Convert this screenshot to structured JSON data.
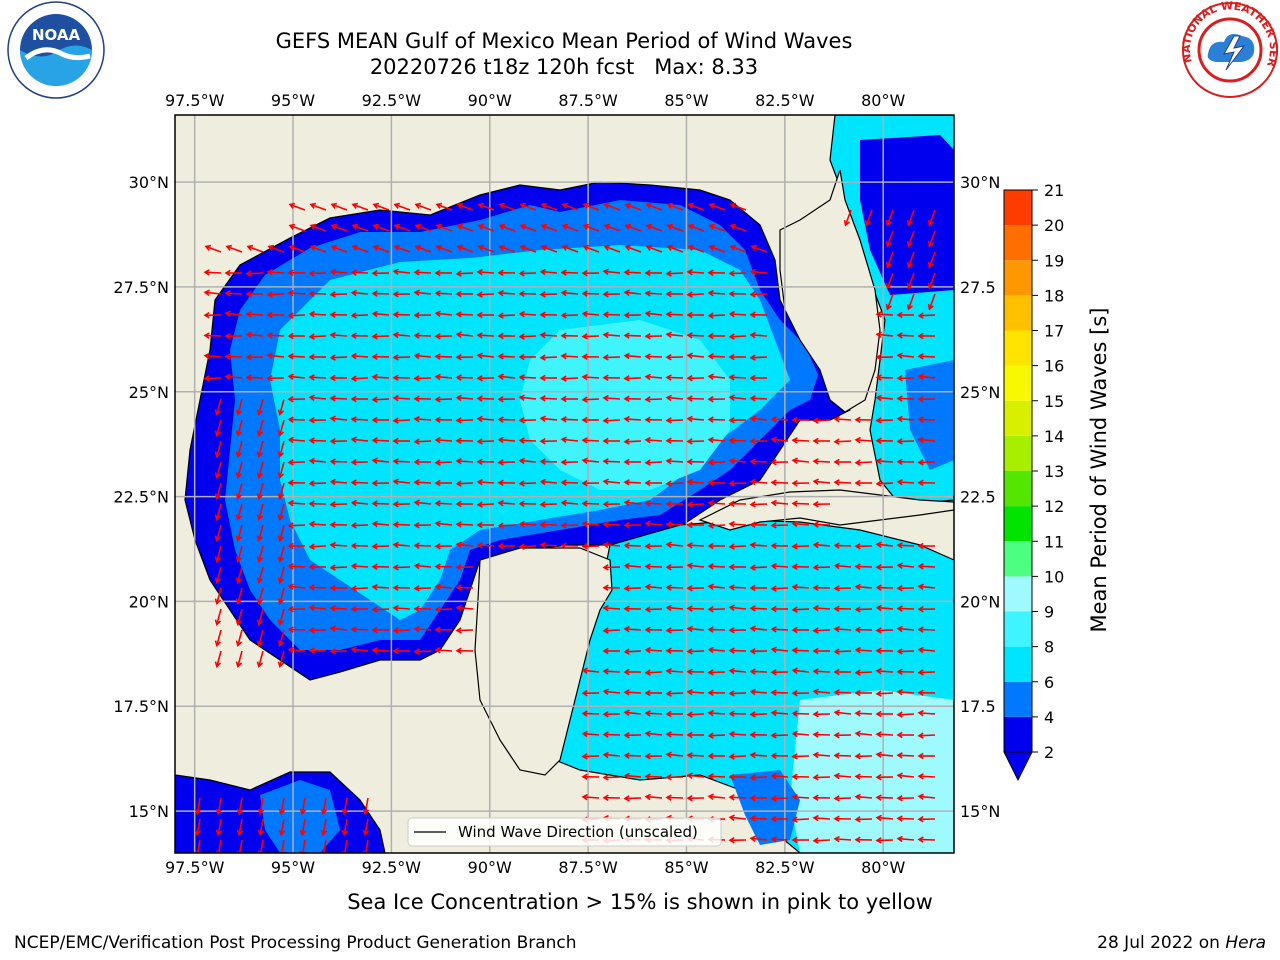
{
  "title": {
    "line1": "GEFS MEAN Gulf of Mexico Mean Period of Wind Waves",
    "line2": "20220726 t18z 120h fcst   Max: 8.33"
  },
  "map": {
    "lon_labels": [
      "97.5°W",
      "95°W",
      "92.5°W",
      "90°W",
      "87.5°W",
      "85°W",
      "82.5°W",
      "80°W"
    ],
    "lat_labels_left": [
      "30°N",
      "27.5°N",
      "25°N",
      "22.5°N",
      "20°N",
      "17.5°N",
      "15°N"
    ],
    "lat_labels_right": [
      "30°N",
      "27.5",
      "25°N",
      "22.5",
      "20°N",
      "17.5",
      "15°N"
    ],
    "lon_values": [
      -97.5,
      -95,
      -92.5,
      -90,
      -87.5,
      -85,
      -82.5,
      -80
    ],
    "lat_values": [
      30,
      27.5,
      25,
      22.5,
      20,
      17.5,
      15
    ],
    "lon_range": [
      -98,
      -78.2
    ],
    "lat_range": [
      14,
      31.6
    ],
    "legend_label": "Wind Wave Direction (unscaled)",
    "arrow_color": "#ff0000",
    "land_color": "#efedde",
    "gridline_color": "#b0b0b0"
  },
  "colorbar": {
    "label": "Mean Period of Wind Waves [s]",
    "ticks": [
      "2",
      "4",
      "6",
      "8",
      "9",
      "10",
      "11",
      "12",
      "13",
      "14",
      "15",
      "16",
      "17",
      "18",
      "19",
      "20",
      "21"
    ],
    "colors": [
      "#0000ee",
      "#0078ff",
      "#00e5ff",
      "#40f4ff",
      "#9ffaff",
      "#4cff80",
      "#00e400",
      "#55e600",
      "#a8ee00",
      "#d8f000",
      "#f8f800",
      "#ffe400",
      "#ffc000",
      "#ff9800",
      "#ff6e00",
      "#ff3c00",
      "#ff0000"
    ],
    "under_color": "#0000ee"
  },
  "sea_ice_note": "Sea Ice Concentration > 15% is shown in pink to yellow",
  "footer": {
    "credit": "NCEP/EMC/Verification Post Processing Product Generation Branch",
    "date": "28 Jul 2022 on ",
    "host": "Hera"
  },
  "logos": {
    "noaa_text": "NOAA",
    "nws_text": "NATIONAL WEATHER SERVICE"
  }
}
